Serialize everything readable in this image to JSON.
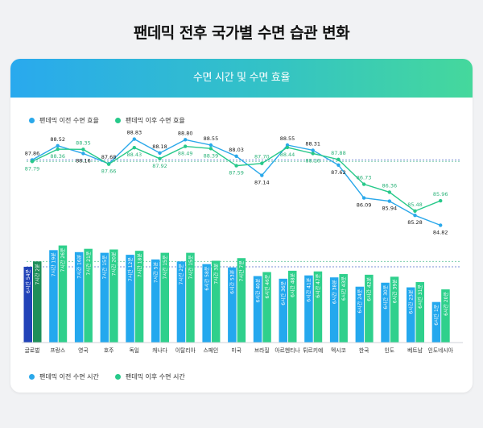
{
  "title": "팬데믹 전후 국가별 수면 습관 변화",
  "panel_title": "수면 시간 및 수면 효율",
  "colors": {
    "before_line": "#2aa8ea",
    "after_line": "#27c98a",
    "before_bar": "#24a8ee",
    "after_bar": "#2fd08c",
    "global_before_bar": "#2243b8",
    "global_after_bar": "#1f8f5a"
  },
  "chart_data": [
    {
      "type": "line",
      "legend": [
        "팬데믹 이전 수면 효율",
        "팬데믹 이후 수면 효율"
      ],
      "categories": [
        "글로벌",
        "프랑스",
        "영국",
        "호주",
        "독일",
        "캐나다",
        "이탈리아",
        "스페인",
        "미국",
        "브라질",
        "아르헨티나",
        "튀르키예",
        "멕시코",
        "한국",
        "인도",
        "베트남",
        "인도네시아"
      ],
      "series": [
        {
          "name": "팬데믹 이전 수면 효율",
          "values": [
            87.86,
            88.52,
            88.16,
            87.68,
            88.83,
            88.18,
            88.8,
            88.55,
            88.03,
            87.14,
            88.55,
            88.31,
            87.62,
            86.09,
            85.94,
            85.28,
            84.82
          ]
        },
        {
          "name": "팬데믹 이후 수면 효율",
          "values": [
            87.79,
            88.36,
            88.35,
            87.66,
            88.43,
            87.92,
            88.49,
            88.39,
            87.59,
            87.7,
            88.44,
            88.16,
            87.88,
            86.73,
            86.36,
            85.48,
            85.96
          ]
        }
      ],
      "labels_before": [
        "87.86",
        "88.52",
        "88.16",
        "87.68",
        "88.83",
        "88.18",
        "88.80",
        "88.55",
        "88.03",
        "87.14",
        "88.55",
        "88.31",
        "87.62",
        "86.09",
        "85.94",
        "85.28",
        "84.82"
      ],
      "labels_after": [
        "87.79",
        "88.36",
        "88.35",
        "87.66",
        "88.43",
        "87.92",
        "88.49",
        "88.39",
        "87.59",
        "87.70",
        "88.44",
        "88.16",
        "87.88",
        "86.73",
        "86.36",
        "85.48",
        "85.96"
      ],
      "reference_lines": true,
      "ylim": [
        84.5,
        89.0
      ],
      "legend_position": "top-left"
    },
    {
      "type": "bar",
      "legend": [
        "팬데믹 이전 수면 시간",
        "팬데믹 이후 수면 시간"
      ],
      "categories": [
        "글로벌",
        "프랑스",
        "영국",
        "호주",
        "독일",
        "캐나다",
        "이탈리아",
        "스페인",
        "미국",
        "브라질",
        "아르헨티나",
        "튀르키예",
        "멕시코",
        "한국",
        "인도",
        "베트남",
        "인도네시아"
      ],
      "series": [
        {
          "name": "팬데믹 이전 수면 시간",
          "values": [
            414,
            439,
            436,
            435,
            432,
            425,
            422,
            418,
            413,
            400,
            396,
            401,
            398,
            384,
            390,
            383,
            361
          ],
          "labels": [
            "6시간 54분",
            "7시간 19분",
            "7시간 16분",
            "7시간 15분",
            "7시간 12분",
            "7시간 5분",
            "7시간 2분",
            "6시간 58분",
            "6시간 53분",
            "6시간 40분",
            "6시간 36분",
            "6시간 41분",
            "6시간 38분",
            "6시간 24분",
            "6시간 30분",
            "6시간 23분",
            "6시간 1분"
          ]
        },
        {
          "name": "팬데믹 이후 수면 시간",
          "values": [
            422,
            446,
            441,
            440,
            438,
            435,
            435,
            423,
            427,
            406,
            408,
            407,
            403,
            402,
            399,
            391,
            380
          ],
          "labels": [
            "7시간 2분",
            "7시간 26분",
            "7시간 21분",
            "7시간 20분",
            "7시간 18분",
            "7시간 15분",
            "7시간 15분",
            "7시간 3분",
            "7시간 7분",
            "6시간 46분",
            "6시간 48분",
            "6시간 47분",
            "6시간 43분",
            "6시간 42분",
            "6시간 39분",
            "6시간 31분",
            "6시간 20분"
          ]
        }
      ],
      "reference_lines": true,
      "ylim": [
        300,
        460
      ],
      "legend_position": "bottom-left"
    }
  ]
}
